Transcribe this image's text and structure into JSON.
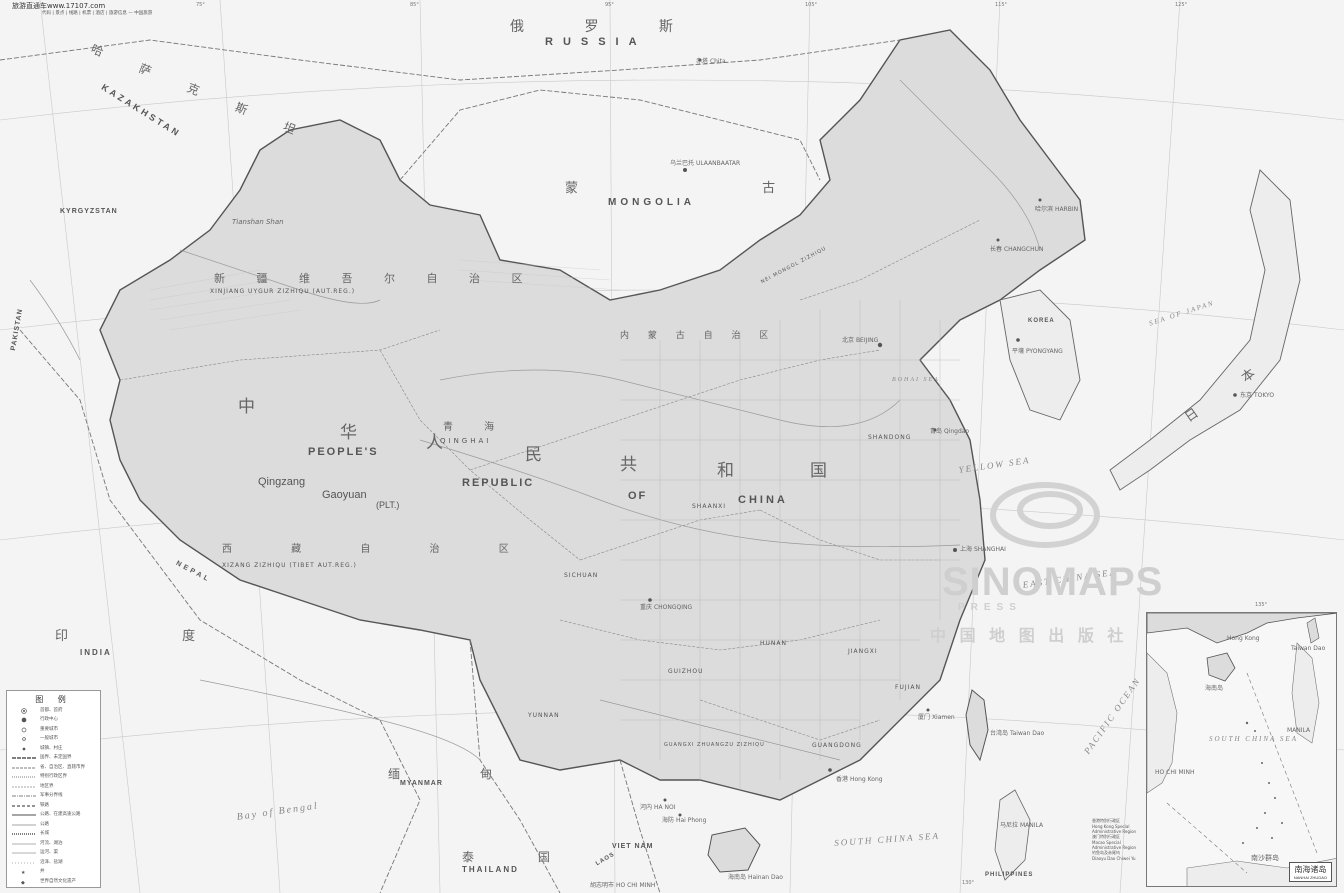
{
  "header": {
    "site_name": "旅游直通车www.17107.com",
    "site_sub": "代码 | 景点 | 线路 | 机票 | 酒店 | 旅游信息 — 中国旅游"
  },
  "countries": {
    "russia_en": "RUSSIA",
    "russia_zh": "俄 罗 斯",
    "mongolia_en": "MONGOLIA",
    "mongolia_zh": "蒙 古",
    "kazakhstan_en": "KAZAKHSTAN",
    "kazakhstan_zh": "哈 萨 克 斯 坦",
    "pakistan_en": "PAKISTAN",
    "india_en": "INDIA",
    "india_zh": "印 度",
    "nepal_en": "NEPAL",
    "myanmar_en": "MYANMAR",
    "myanmar_zh": "缅 甸",
    "thailand_en": "THAILAND",
    "thailand_zh": "泰 国",
    "vietnam_en": "VIET NAM",
    "laos_en": "LAOS",
    "korea_en": "KOREA",
    "japan_zh": "日 本",
    "philippines_en": "PHILIPPINES",
    "kyrgyzstan_en": "KYRGYZSTAN"
  },
  "china": {
    "en_peoples": "PEOPLE'S",
    "en_republic": "REPUBLIC",
    "en_of": "OF",
    "en_china": "CHINA",
    "zh_1": "中",
    "zh_2": "华",
    "zh_3": "人",
    "zh_4": "民",
    "zh_5": "共",
    "zh_6": "和",
    "zh_7": "国"
  },
  "regions": {
    "xinjiang": "XINJIANG UYGUR ZIZHIQU (AUT.REG.)",
    "xinjiang_zh": "新 疆 维 吾 尔 自 治 区",
    "xizang": "XIZANG ZIZHIQU (TIBET AUT.REG.)",
    "xizang_zh": "西 藏 自 治 区",
    "qinghai": "QINGHAI",
    "qinghai_zh": "青 海",
    "nei_mongol": "NEI MONGOL ZIZHIQU",
    "nei_mongol_zh": "内 蒙 古 自 治 区",
    "qingzang": "Qingzang",
    "gaoyuan": "Gaoyuan",
    "plt": "(PLT.)",
    "tianshan": "Tianshan Shan",
    "sichuan": "SICHUAN",
    "yunnan": "YUNNAN",
    "shaanxi": "SHAANXI",
    "shandong": "SHANDONG",
    "guangdong": "GUANGDONG",
    "fujian": "FUJIAN",
    "hunan": "HUNAN",
    "jiangxi": "JIANGXI",
    "guizhou": "GUIZHOU",
    "guangxi": "GUANGXI ZHUANGZU ZIZHIQU"
  },
  "seas": {
    "yellow_sea": "YELLOW SEA",
    "east_china_sea": "EAST CHINA SEA",
    "south_china_sea": "SOUTH CHINA SEA",
    "bay_of_bengal": "Bay of Bengal",
    "sea_of_japan": "SEA OF JAPAN",
    "pacific_ocean": "PACIFIC OCEAN",
    "bohai_sea": "BOHAI SEA"
  },
  "cities": [
    {
      "name": "北京",
      "label": "BEIJING"
    },
    {
      "name": "上海",
      "label": "SHANGHAI"
    },
    {
      "name": "台湾岛",
      "label": "Taiwan Dao"
    },
    {
      "name": "海南岛",
      "label": "Hainan Dao"
    },
    {
      "name": "乌兰巴托",
      "label": "ULAANBAATAR"
    },
    {
      "name": "平壤",
      "label": "PYONGYANG"
    },
    {
      "name": "香港",
      "label": "Hong Kong"
    },
    {
      "name": "青岛",
      "label": "Qingdao"
    },
    {
      "name": "东京",
      "label": "TOKYO"
    },
    {
      "name": "马尼拉",
      "label": "MANILA"
    },
    {
      "name": "胡志明市",
      "label": "HO CHI MINH"
    },
    {
      "name": "河内",
      "label": "HA NOI"
    },
    {
      "name": "海防",
      "label": "Hai Phong"
    },
    {
      "name": "赤塔",
      "label": "Chita"
    },
    {
      "name": "厦门",
      "label": "Xiamen"
    },
    {
      "name": "重庆",
      "label": "CHONGQING"
    },
    {
      "name": "长春",
      "label": "CHANGCHUN"
    },
    {
      "name": "哈尔滨",
      "label": "HARBIN"
    }
  ],
  "watermark": {
    "brand": "SINOMAPS",
    "press": "PRESS",
    "zh": "中 国 地 图 出 版 社"
  },
  "legend": {
    "title": "图 例",
    "items": [
      "首都、首府",
      "行政中心",
      "重要城市",
      "一般城市",
      "城镇、村庄",
      "国界、未定国界",
      "省、自治区、直辖市界",
      "特别行政区界",
      "地区界",
      "军事分界线",
      "铁路",
      "公路、在建高速公路",
      "公路",
      "长城",
      "河流、湖泊",
      "运河、渠",
      "沼泽、盐湖",
      "井",
      "世界自然文化遗产"
    ]
  },
  "inset": {
    "title": "南海诸岛",
    "sub": "NANHAI ZHUDAO",
    "south_china_sea": "SOUTH CHINA SEA",
    "manila": "MANILA",
    "hainan": "海南岛",
    "ho_chi_minh": "HO CHI MINH",
    "hong_kong": "Hong Kong",
    "taiwan": "Taiwan Dao",
    "islands": "南沙群岛"
  },
  "notes": {
    "n1": "香港特别行政区",
    "n2": "Hong Kong Special Administrative Region",
    "n3": "澳门特别行政区",
    "n4": "Macao Special Administrative Region",
    "n5": "钓鱼岛及赤尾屿",
    "n6": "Diaoyu Dao Chiwei Yu"
  },
  "ticks": {
    "lon_75": "75°",
    "lon_85": "85°",
    "lon_95": "95°",
    "lon_105": "105°",
    "lon_115": "115°",
    "lon_125": "125°",
    "lon_135": "135°",
    "lon_130": "130°"
  },
  "colors": {
    "background": "#f4f4f4",
    "china_fill": "#d9d9d9",
    "border": "#555555",
    "river": "#9a9a9a"
  }
}
